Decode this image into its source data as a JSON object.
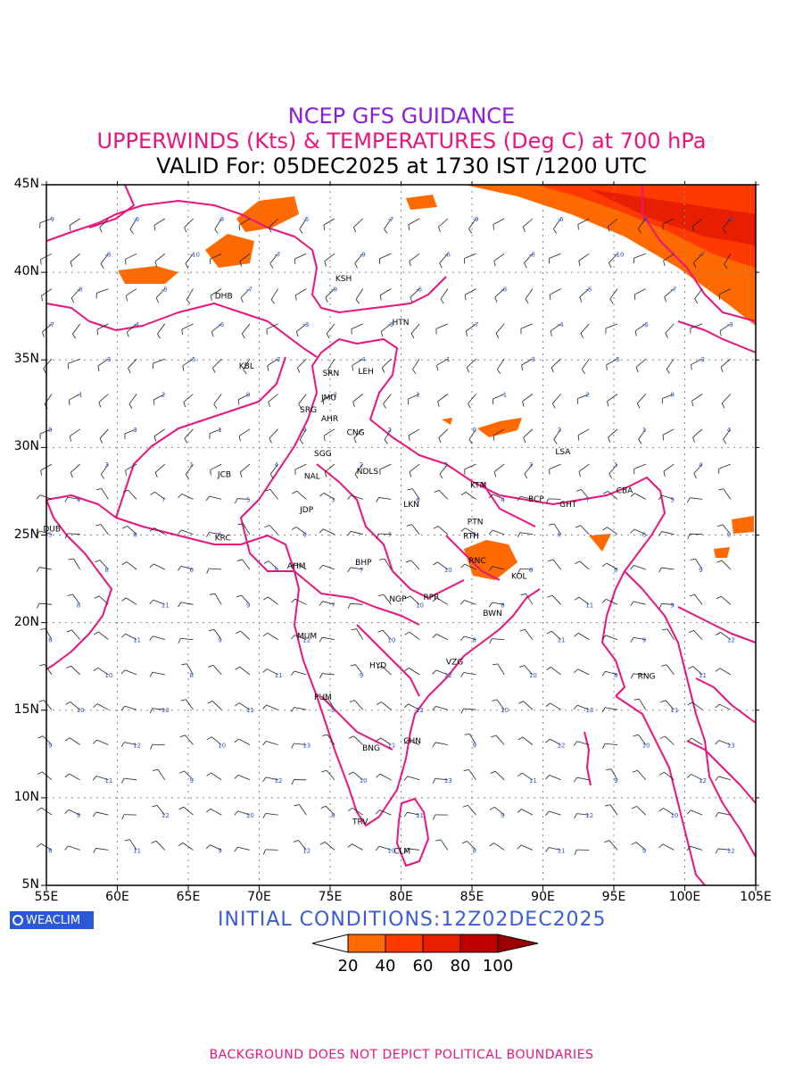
{
  "title": {
    "line1": "NCEP GFS GUIDANCE",
    "line2": "UPPERWINDS (Kts) & TEMPERATURES (Deg C) at 700 hPa",
    "line3": "VALID For: 05DEC2025 at 1730 IST /1200 UTC"
  },
  "colors": {
    "title1": "#8a1be0",
    "title2": "#e8157d",
    "init": "#3b5bdb",
    "boundary": "#e8157d",
    "temperature_label": "#2a4fd8",
    "footer": "#e8157d"
  },
  "lat_labels": [
    "45N",
    "40N",
    "35N",
    "30N",
    "25N",
    "20N",
    "15N",
    "10N",
    "5N"
  ],
  "lon_labels": [
    "55E",
    "60E",
    "65E",
    "70E",
    "75E",
    "80E",
    "85E",
    "90E",
    "95E",
    "100E",
    "105E"
  ],
  "stations": [
    "KSH",
    "DHB",
    "HTN",
    "KBL",
    "SRN",
    "LEH",
    "JMU",
    "SRG",
    "AHR",
    "CNG",
    "SGG",
    "LSA",
    "JCB",
    "NAL",
    "NDLS",
    "KTM",
    "CBA",
    "BCP",
    "GHT",
    "JDP",
    "LKN",
    "PTN",
    "DUB",
    "KRC",
    "RTH",
    "AHM",
    "BHP",
    "RNC",
    "KOL",
    "NGP",
    "RPR",
    "BWN",
    "MUM",
    "HYD",
    "VZG",
    "RNG",
    "PUM",
    "CHN",
    "BNG",
    "TRV",
    "CLM"
  ],
  "initial_conditions": "INITIAL CONDITIONS:12Z02DEC2025",
  "logo": "WEACLIM",
  "colorbar": {
    "labels": [
      "20",
      "40",
      "60",
      "80",
      "100"
    ],
    "colors": [
      "#ff6a00",
      "#ff3a00",
      "#e81e00",
      "#c00000",
      "#9a0000"
    ]
  },
  "footer": "BACKGROUND DOES NOT DEPICT POLITICAL BOUNDARIES"
}
